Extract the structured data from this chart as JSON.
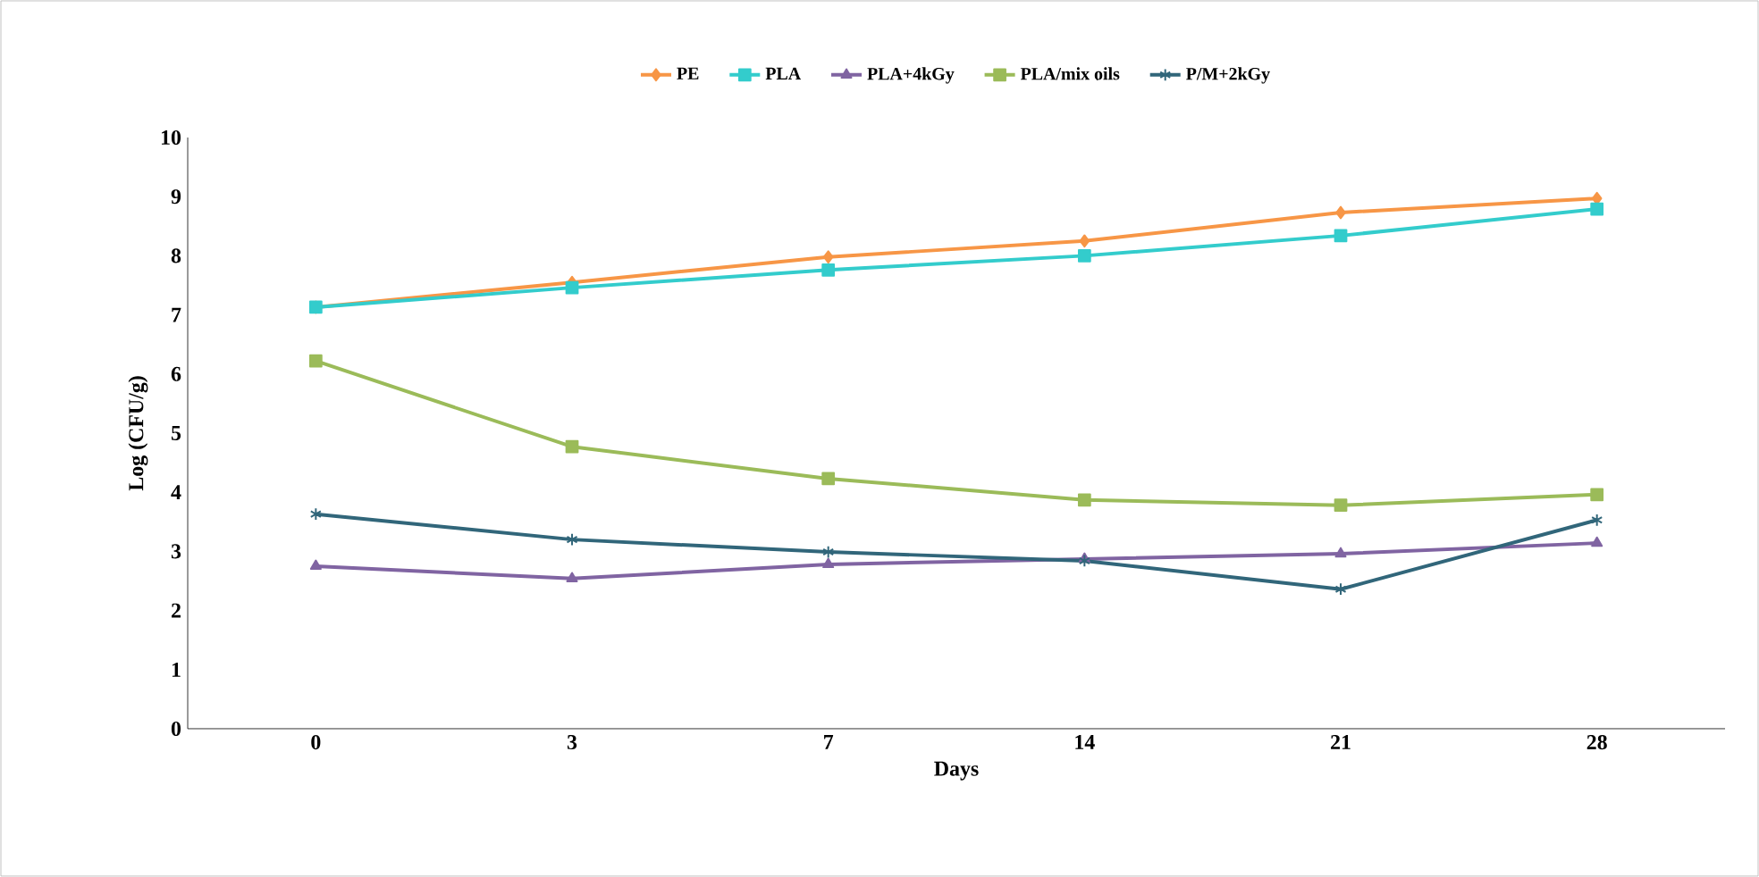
{
  "chart_data": {
    "type": "line",
    "xlabel": "Days",
    "ylabel": "Log (CFU/g)",
    "categories": [
      "0",
      "3",
      "7",
      "14",
      "21",
      "28"
    ],
    "ylim": [
      0,
      10
    ],
    "yticks": [
      0,
      1,
      2,
      3,
      4,
      5,
      6,
      7,
      8,
      9,
      10
    ],
    "grid": false,
    "legend": "top",
    "line_style": "solid",
    "series": [
      {
        "name": "PE",
        "color": "#f79646",
        "marker": "diamond",
        "values": [
          7.13,
          7.55,
          7.98,
          8.25,
          8.73,
          8.97
        ]
      },
      {
        "name": "PLA",
        "color": "#33cccc",
        "marker": "square",
        "values": [
          7.13,
          7.46,
          7.76,
          8.0,
          8.34,
          8.79
        ]
      },
      {
        "name": "PLA+4kGy",
        "color": "#8064a2",
        "marker": "triangle",
        "values": [
          2.75,
          2.54,
          2.78,
          2.87,
          2.96,
          3.14
        ]
      },
      {
        "name": "PLA/mix oils",
        "color": "#9bbb59",
        "marker": "square",
        "values": [
          6.22,
          4.77,
          4.23,
          3.87,
          3.78,
          3.96
        ]
      },
      {
        "name": "P/M+2kGy",
        "color": "#31667a",
        "marker": "cross",
        "values": [
          3.63,
          3.2,
          2.99,
          2.84,
          2.36,
          3.53
        ]
      }
    ]
  }
}
